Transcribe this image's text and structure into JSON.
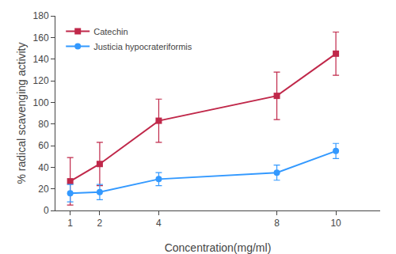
{
  "chart_data": {
    "type": "line",
    "xlabel": "Concentration(mg/ml)",
    "ylabel": "% radical scavenging activity",
    "x": [
      1,
      2,
      4,
      8,
      10
    ],
    "series": [
      {
        "name": "Catechin",
        "color": "#c0284a",
        "marker": "square",
        "values": [
          27,
          43,
          83,
          106,
          145
        ],
        "errors": [
          22,
          20,
          20,
          22,
          20
        ]
      },
      {
        "name": "Justicia hypocrateriformis",
        "color": "#3399ff",
        "marker": "circle",
        "values": [
          16,
          17,
          29,
          35,
          55
        ],
        "errors": [
          8,
          7,
          6,
          7,
          7
        ]
      }
    ],
    "xlim": [
      0.5,
      11.5
    ],
    "xticks": [
      1,
      2,
      4,
      8,
      10
    ],
    "ylim": [
      0,
      180
    ],
    "yticks": [
      0,
      20,
      40,
      60,
      80,
      100,
      120,
      140,
      160,
      180
    ],
    "legend": "upper left",
    "grid": false
  }
}
